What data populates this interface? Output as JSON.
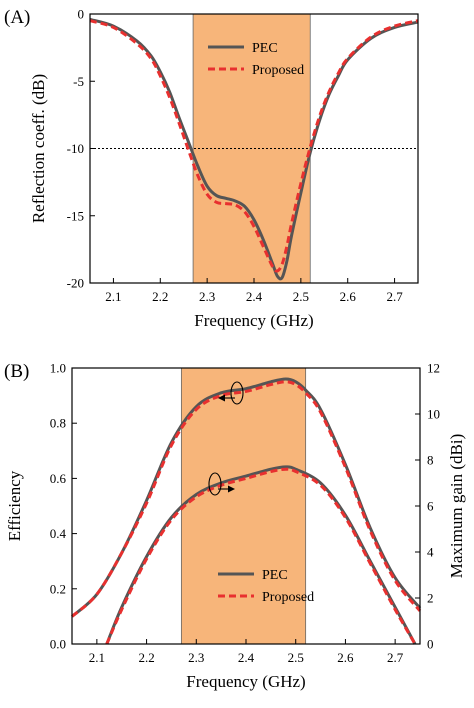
{
  "chart_data": [
    {
      "type": "line",
      "panel_label": "(A)",
      "xlabel": "Frequency (GHz)",
      "ylabel": "Reflection coeff. (dB)",
      "xlim": [
        2.05,
        2.75
      ],
      "ylim": [
        -20,
        0
      ],
      "xticks": [
        "2.1",
        "2.2",
        "2.3",
        "2.4",
        "2.5",
        "2.6",
        "2.7"
      ],
      "yticks": [
        "0",
        "-5",
        "-10",
        "-15",
        "-20"
      ],
      "shaded_band": [
        2.27,
        2.52
      ],
      "reference_line": -10,
      "legend_position": "top-center",
      "series": [
        {
          "name": "PEC",
          "color": "#555555",
          "style": "solid",
          "x": [
            2.05,
            2.1,
            2.15,
            2.18,
            2.2,
            2.22,
            2.24,
            2.26,
            2.28,
            2.3,
            2.32,
            2.34,
            2.36,
            2.38,
            2.4,
            2.42,
            2.44,
            2.45,
            2.46,
            2.47,
            2.48,
            2.5,
            2.52,
            2.54,
            2.56,
            2.58,
            2.6,
            2.65,
            2.7,
            2.75
          ],
          "y": [
            -0.4,
            -0.9,
            -2.0,
            -3.1,
            -4.3,
            -5.8,
            -7.7,
            -9.5,
            -11.3,
            -12.8,
            -13.5,
            -13.7,
            -13.9,
            -14.3,
            -15.3,
            -16.8,
            -18.6,
            -19.5,
            -19.6,
            -18.4,
            -16.5,
            -13.3,
            -10.3,
            -7.9,
            -6.0,
            -4.6,
            -3.4,
            -1.8,
            -1.0,
            -0.6
          ]
        },
        {
          "name": "Proposed",
          "color": "#e8302f",
          "style": "dashed",
          "x": [
            2.05,
            2.1,
            2.15,
            2.18,
            2.2,
            2.22,
            2.24,
            2.26,
            2.28,
            2.3,
            2.32,
            2.34,
            2.36,
            2.38,
            2.4,
            2.42,
            2.44,
            2.45,
            2.46,
            2.47,
            2.48,
            2.5,
            2.52,
            2.54,
            2.56,
            2.58,
            2.6,
            2.65,
            2.7,
            2.75
          ],
          "y": [
            -0.5,
            -1.0,
            -2.2,
            -3.3,
            -4.6,
            -6.2,
            -8.1,
            -10.1,
            -12.0,
            -13.4,
            -14.0,
            -14.1,
            -14.2,
            -14.7,
            -15.8,
            -17.3,
            -18.8,
            -19.1,
            -18.6,
            -17.3,
            -15.6,
            -12.6,
            -9.9,
            -7.6,
            -5.8,
            -4.4,
            -3.3,
            -1.7,
            -0.9,
            -0.5
          ]
        }
      ]
    },
    {
      "type": "line",
      "panel_label": "(B)",
      "xlabel": "Frequency (GHz)",
      "ylabel": "Efficiency",
      "ylabel_right": "Maximum gain (dBi)",
      "xlim": [
        2.05,
        2.75
      ],
      "ylim": [
        0,
        1
      ],
      "ylim_right": [
        0,
        12
      ],
      "xticks": [
        "2.1",
        "2.2",
        "2.3",
        "2.4",
        "2.5",
        "2.6",
        "2.7"
      ],
      "yticks": [
        "0.0",
        "0.2",
        "0.4",
        "0.6",
        "0.8",
        "1.0"
      ],
      "yticks_right": [
        "0",
        "2",
        "4",
        "6",
        "8",
        "10",
        "12"
      ],
      "shaded_band": [
        2.27,
        2.52
      ],
      "legend_position": "bottom-center",
      "series": [
        {
          "name": "PEC",
          "axis": "left",
          "color": "#555555",
          "style": "solid",
          "x": [
            2.05,
            2.1,
            2.15,
            2.2,
            2.25,
            2.3,
            2.35,
            2.4,
            2.45,
            2.48,
            2.5,
            2.52,
            2.55,
            2.6,
            2.65,
            2.7,
            2.75
          ],
          "y": [
            0.1,
            0.18,
            0.33,
            0.52,
            0.73,
            0.86,
            0.91,
            0.925,
            0.95,
            0.96,
            0.95,
            0.92,
            0.85,
            0.65,
            0.42,
            0.24,
            0.13
          ]
        },
        {
          "name": "Proposed",
          "axis": "left",
          "color": "#e8302f",
          "style": "dashed",
          "x": [
            2.05,
            2.1,
            2.15,
            2.2,
            2.25,
            2.3,
            2.35,
            2.4,
            2.45,
            2.48,
            2.5,
            2.52,
            2.55,
            2.6,
            2.65,
            2.7,
            2.75
          ],
          "y": [
            0.1,
            0.18,
            0.33,
            0.51,
            0.72,
            0.85,
            0.9,
            0.915,
            0.94,
            0.95,
            0.94,
            0.91,
            0.84,
            0.64,
            0.41,
            0.23,
            0.12
          ]
        },
        {
          "name": "PEC",
          "axis": "right",
          "color": "#555555",
          "style": "solid",
          "x": [
            2.12,
            2.15,
            2.2,
            2.25,
            2.3,
            2.35,
            2.4,
            2.45,
            2.48,
            2.5,
            2.55,
            2.6,
            2.65,
            2.7,
            2.74
          ],
          "y": [
            0.0,
            1.6,
            3.8,
            5.5,
            6.5,
            7.0,
            7.3,
            7.6,
            7.7,
            7.6,
            7.0,
            5.6,
            3.6,
            1.6,
            0.0
          ]
        },
        {
          "name": "Proposed",
          "axis": "right",
          "color": "#e8302f",
          "style": "dashed",
          "x": [
            2.12,
            2.15,
            2.2,
            2.25,
            2.3,
            2.35,
            2.4,
            2.45,
            2.48,
            2.5,
            2.55,
            2.6,
            2.65,
            2.7,
            2.74
          ],
          "y": [
            0.0,
            1.5,
            3.7,
            5.4,
            6.4,
            6.9,
            7.2,
            7.5,
            7.6,
            7.5,
            6.9,
            5.5,
            3.5,
            1.5,
            0.0
          ]
        }
      ]
    }
  ]
}
